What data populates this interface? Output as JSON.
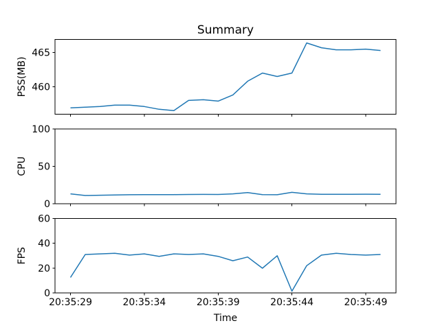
{
  "figure": {
    "title": "Summary",
    "xlabel": "Time",
    "line_color": "#1f77b4",
    "background": "#ffffff",
    "text_color": "#000000"
  },
  "chart_data": [
    {
      "type": "line",
      "title": "Summary",
      "ylabel": "PSS(MB)",
      "x": [
        "20:35:29",
        "20:35:30",
        "20:35:31",
        "20:35:32",
        "20:35:33",
        "20:35:34",
        "20:35:35",
        "20:35:36",
        "20:35:37",
        "20:35:38",
        "20:35:39",
        "20:35:40",
        "20:35:41",
        "20:35:42",
        "20:35:43",
        "20:35:44",
        "20:35:45",
        "20:35:46",
        "20:35:47",
        "20:35:48",
        "20:35:49",
        "20:35:50"
      ],
      "values": [
        456.9,
        457.0,
        457.1,
        457.3,
        457.3,
        457.1,
        456.7,
        456.5,
        458.0,
        458.1,
        457.9,
        458.8,
        460.8,
        462.0,
        461.5,
        462.0,
        466.4,
        465.7,
        465.4,
        465.4,
        465.5,
        465.3
      ],
      "ylim": [
        456.0,
        466.9
      ],
      "yticks": [
        460,
        465
      ],
      "xtick_labels": [
        "20:35:29",
        "20:35:34",
        "20:35:39",
        "20:35:44",
        "20:35:49"
      ],
      "grid": false,
      "legend": "none"
    },
    {
      "type": "line",
      "ylabel": "CPU",
      "x": [
        "20:35:29",
        "20:35:30",
        "20:35:31",
        "20:35:32",
        "20:35:33",
        "20:35:34",
        "20:35:35",
        "20:35:36",
        "20:35:37",
        "20:35:38",
        "20:35:39",
        "20:35:40",
        "20:35:41",
        "20:35:42",
        "20:35:43",
        "20:35:44",
        "20:35:45",
        "20:35:46",
        "20:35:47",
        "20:35:48",
        "20:35:49",
        "20:35:50"
      ],
      "values": [
        13,
        10.8,
        11.2,
        11.5,
        11.8,
        12,
        12,
        12,
        12.2,
        12.3,
        12.2,
        13,
        14.8,
        12,
        11.8,
        15,
        13,
        12.5,
        12.4,
        12.5,
        12.6,
        12.4
      ],
      "ylim": [
        0,
        100
      ],
      "yticks": [
        0,
        50,
        100
      ],
      "xtick_labels": [
        "20:35:29",
        "20:35:34",
        "20:35:39",
        "20:35:44",
        "20:35:49"
      ],
      "grid": false,
      "legend": "none"
    },
    {
      "type": "line",
      "ylabel": "FPS",
      "xlabel": "Time",
      "x": [
        "20:35:29",
        "20:35:30",
        "20:35:31",
        "20:35:32",
        "20:35:33",
        "20:35:34",
        "20:35:35",
        "20:35:36",
        "20:35:37",
        "20:35:38",
        "20:35:39",
        "20:35:40",
        "20:35:41",
        "20:35:42",
        "20:35:43",
        "20:35:44",
        "20:35:45",
        "20:35:46",
        "20:35:47",
        "20:35:48",
        "20:35:49",
        "20:35:50"
      ],
      "values": [
        12.5,
        31,
        31.5,
        32,
        30.5,
        31.5,
        29.5,
        31.5,
        31,
        31.5,
        29.5,
        26,
        29,
        20,
        30,
        1.5,
        22,
        30.5,
        32,
        31,
        30.5,
        31
      ],
      "ylim": [
        0,
        60
      ],
      "yticks": [
        0,
        20,
        40,
        60
      ],
      "xtick_labels": [
        "20:35:29",
        "20:35:34",
        "20:35:39",
        "20:35:44",
        "20:35:49"
      ],
      "grid": false,
      "legend": "none"
    }
  ]
}
